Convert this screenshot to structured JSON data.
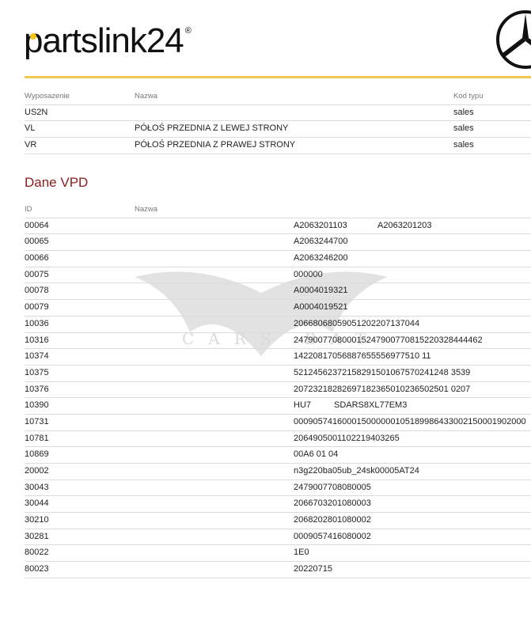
{
  "brand": {
    "logo_text": "partslink24",
    "registered": "®",
    "accent": "#f2c94c",
    "heading_color": "#8b1c1c"
  },
  "watermark": {
    "text": "CARS BAT"
  },
  "equipment": {
    "headers": [
      "Wyposazenie",
      "Nazwa",
      "Kod typu"
    ],
    "rows": [
      {
        "code": "US2N",
        "name": "",
        "type": "sales"
      },
      {
        "code": "VL",
        "name": "PÓŁOŚ PRZEDNIA Z LEWEJ STRONY",
        "type": "sales"
      },
      {
        "code": "VR",
        "name": "PÓŁOŚ PRZEDNIA Z PRAWEJ STRONY",
        "type": "sales"
      }
    ]
  },
  "vpd": {
    "title": "Dane VPD",
    "headers": [
      "ID",
      "Nazwa"
    ],
    "rows": [
      {
        "id": "00064",
        "values": [
          "A2063201103",
          "A2063201203"
        ]
      },
      {
        "id": "00065",
        "values": [
          "A2063244700"
        ]
      },
      {
        "id": "00066",
        "values": [
          "A2063246200"
        ]
      },
      {
        "id": "00075",
        "values": [
          "000000"
        ]
      },
      {
        "id": "00078",
        "values": [
          "A0004019321"
        ]
      },
      {
        "id": "00079",
        "values": [
          "A0004019521"
        ]
      },
      {
        "id": "10036",
        "values": [
          "20668068059051202207137044"
        ]
      },
      {
        "id": "10316",
        "values": [
          "247900770800015247900770815220328444462"
        ]
      },
      {
        "id": "10374",
        "values": [
          "14220817056887655556977510 11"
        ]
      },
      {
        "id": "10375",
        "values": [
          "52124562372158291501067570241248 3539"
        ]
      },
      {
        "id": "10376",
        "values": [
          "20723218282697182365010236502501 0207"
        ]
      },
      {
        "id": "10390",
        "values": [
          "HU7",
          "SDARS8XL77EM3"
        ]
      },
      {
        "id": "10731",
        "values": [
          "000905741600015000000105189986433002150001902000"
        ]
      },
      {
        "id": "10781",
        "values": [
          "2064905001102219403265"
        ]
      },
      {
        "id": "10869",
        "values": [
          "00A6 01 04"
        ]
      },
      {
        "id": "20002",
        "values": [
          "n3g220ba05ub_24sk00005AT24"
        ]
      },
      {
        "id": "30043",
        "values": [
          "2479007708080005"
        ]
      },
      {
        "id": "30044",
        "values": [
          "2066703201080003"
        ]
      },
      {
        "id": "30210",
        "values": [
          "2068202801080002"
        ]
      },
      {
        "id": "30281",
        "values": [
          "0009057416080002"
        ]
      },
      {
        "id": "80022",
        "values": [
          "1E0"
        ]
      },
      {
        "id": "80023",
        "values": [
          "20220715"
        ]
      }
    ]
  }
}
